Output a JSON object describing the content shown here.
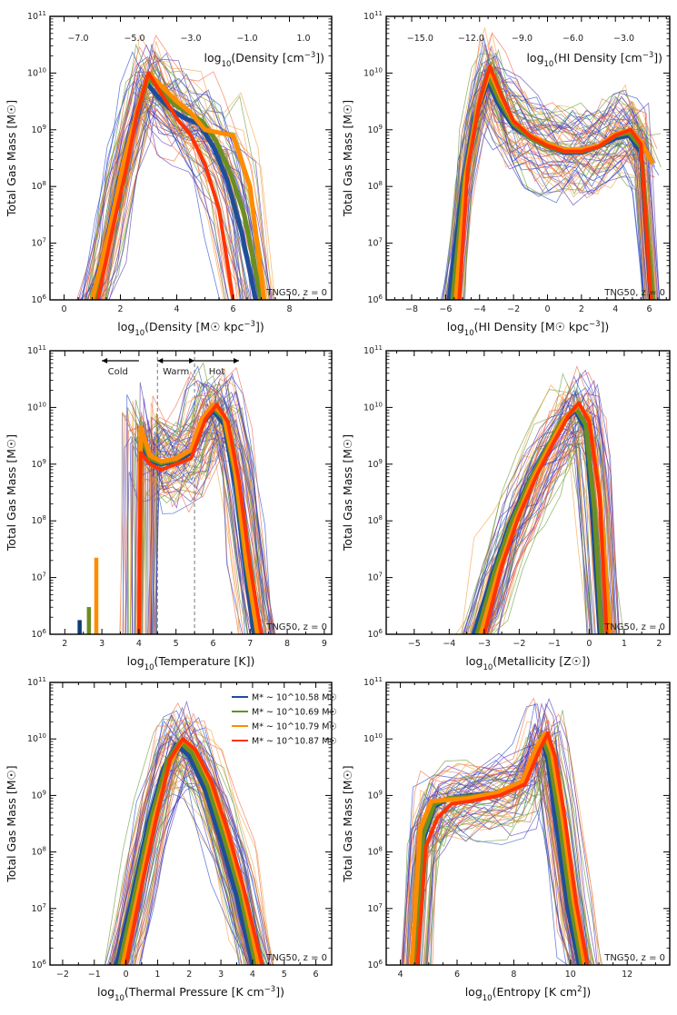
{
  "colors": {
    "g1": "#1f4e96",
    "g2": "#6b8e23",
    "g3": "#ff8c00",
    "g4": "#ff3300",
    "dark": "#0c3c78",
    "thin": [
      "#2b4fcf",
      "#6a9c3a",
      "#f4a340",
      "#ef6a4a",
      "#5a39b0"
    ]
  },
  "legend": [
    {
      "label": "M* ~ 10^10.58 M☉",
      "color": "#1f4e96"
    },
    {
      "label": "M* ~ 10^10.69 M☉",
      "color": "#6b8e23"
    },
    {
      "label": "M* ~ 10^10.79 M☉",
      "color": "#ff8c00"
    },
    {
      "label": "M* ~ 10^10.87 M☉",
      "color": "#ff3300"
    }
  ],
  "chart_data": [
    {
      "type": "line",
      "xlabel": "log10(Density [M☉ kpc^-3])",
      "ylabel": "Total Gas Mass [M☉]",
      "annotation": "TNG50, z = 0",
      "xlim": [
        -0.5,
        9.5
      ],
      "ylim": [
        6,
        11
      ],
      "yscale": "log",
      "xticks": [
        0,
        2,
        4,
        6,
        8
      ],
      "top_axis": {
        "label": "log10(Density [cm^-3])",
        "ticks": [
          -7.0,
          -5.0,
          -3.0,
          -1.0,
          1.0
        ],
        "labels": [
          "-7.0",
          "-5.0",
          "-3.0",
          "-1.0",
          "1.0"
        ],
        "offset": 7.5
      },
      "series": [
        {
          "x": [
            1.0,
            1.5,
            2.0,
            2.5,
            2.9,
            3.3,
            3.8,
            4.3,
            4.8,
            5.3,
            5.8,
            6.3,
            6.8
          ],
          "y": [
            6.0,
            7.0,
            8.2,
            9.2,
            9.85,
            9.6,
            9.35,
            9.2,
            9.1,
            8.7,
            8.1,
            7.2,
            6.0
          ]
        },
        {
          "x": [
            1.1,
            1.6,
            2.1,
            2.6,
            3.0,
            3.4,
            3.9,
            4.4,
            4.9,
            5.4,
            5.9,
            6.4,
            7.0
          ],
          "y": [
            6.0,
            7.1,
            8.3,
            9.3,
            9.92,
            9.7,
            9.45,
            9.3,
            9.15,
            8.8,
            8.25,
            7.5,
            6.0
          ]
        },
        {
          "x": [
            1.0,
            1.6,
            2.1,
            2.6,
            3.0,
            3.5,
            4.0,
            4.5,
            5.0,
            5.5,
            6.0,
            6.6,
            7.1
          ],
          "y": [
            6.0,
            7.2,
            8.4,
            9.35,
            10.0,
            9.75,
            9.5,
            9.3,
            9.0,
            8.95,
            8.9,
            8.0,
            6.0
          ]
        },
        {
          "x": [
            1.2,
            1.7,
            2.2,
            2.6,
            3.0,
            3.5,
            4.0,
            4.5,
            5.0,
            5.5,
            6.0
          ],
          "y": [
            6.0,
            7.2,
            8.3,
            9.3,
            10.0,
            9.6,
            9.2,
            8.9,
            8.4,
            7.6,
            6.0
          ]
        }
      ]
    },
    {
      "type": "line",
      "xlabel": "log10(HI Density [M☉ kpc^-3])",
      "ylabel": "Total Gas Mass [M☉]",
      "annotation": "TNG50, z = 0",
      "xlim": [
        -9.5,
        7.2
      ],
      "ylim": [
        6,
        11
      ],
      "yscale": "log",
      "xticks": [
        -8,
        -6,
        -4,
        -2,
        0,
        2,
        4,
        6
      ],
      "top_axis": {
        "label": "log10(HI Density [cm^-3])",
        "ticks": [
          -15.0,
          -12.0,
          -9.0,
          -6.0,
          -3.0
        ],
        "labels": [
          "-15.0",
          "-12.0",
          "-9.0",
          "-6.0",
          "-3.0"
        ],
        "offset": 7.5
      },
      "series": [
        {
          "x": [
            -5.8,
            -5.0,
            -4.3,
            -3.5,
            -2.8,
            -2.0,
            -1.0,
            0.0,
            1.0,
            2.0,
            3.0,
            4.0,
            4.8,
            5.5,
            6.1
          ],
          "y": [
            6.0,
            8.0,
            9.2,
            9.85,
            9.4,
            9.05,
            8.85,
            8.7,
            8.6,
            8.6,
            8.7,
            8.85,
            8.9,
            8.6,
            6.0
          ]
        },
        {
          "x": [
            -5.6,
            -4.9,
            -4.2,
            -3.5,
            -2.8,
            -2.0,
            -1.0,
            0.0,
            1.0,
            2.0,
            3.0,
            4.0,
            4.8,
            5.5,
            6.2
          ],
          "y": [
            6.0,
            8.1,
            9.3,
            9.95,
            9.5,
            9.1,
            8.85,
            8.7,
            8.62,
            8.62,
            8.7,
            8.9,
            8.95,
            8.7,
            6.0
          ]
        },
        {
          "x": [
            -5.4,
            -4.8,
            -4.1,
            -3.4,
            -2.7,
            -2.0,
            -1.0,
            0.0,
            1.0,
            2.0,
            3.0,
            4.0,
            4.9,
            5.5,
            6.2
          ],
          "y": [
            6.0,
            8.2,
            9.4,
            10.05,
            9.55,
            9.15,
            8.9,
            8.75,
            8.65,
            8.65,
            8.72,
            8.92,
            9.0,
            8.8,
            8.4
          ]
        },
        {
          "x": [
            -5.2,
            -4.7,
            -4.0,
            -3.4,
            -2.7,
            -2.0,
            -1.0,
            0.0,
            1.0,
            2.0,
            3.0,
            4.0,
            4.9,
            5.5,
            6.1
          ],
          "y": [
            6.0,
            8.3,
            9.5,
            10.12,
            9.6,
            9.15,
            8.88,
            8.72,
            8.62,
            8.62,
            8.7,
            8.9,
            9.0,
            8.75,
            6.0
          ]
        }
      ]
    },
    {
      "type": "line",
      "xlabel": "log10(Temperature [K])",
      "ylabel": "Total Gas Mass [M☉]",
      "annotation": "TNG50, z = 0",
      "xlim": [
        1.6,
        9.2
      ],
      "ylim": [
        6,
        11
      ],
      "yscale": "log",
      "xticks": [
        2,
        3,
        4,
        5,
        6,
        7,
        8,
        9
      ],
      "vlines": [
        4.5,
        5.5
      ],
      "phases": [
        {
          "label": "Cold",
          "from": 4.0,
          "to": 3.0
        },
        {
          "label": "Warm",
          "from": 4.5,
          "to": 5.5
        },
        {
          "label": "Hot",
          "from": 5.5,
          "to": 6.7
        }
      ],
      "spikes": [
        {
          "x": 2.4,
          "y": 6.25
        },
        {
          "x": 2.65,
          "y": 6.48
        },
        {
          "x": 2.85,
          "y": 7.35
        }
      ],
      "series": [
        {
          "x": [
            4.0,
            4.05,
            4.3,
            4.6,
            5.0,
            5.4,
            5.7,
            6.0,
            6.3,
            6.6,
            6.9,
            7.1
          ],
          "y": [
            6.0,
            9.4,
            9.05,
            9.0,
            9.05,
            9.2,
            9.7,
            9.95,
            9.7,
            8.6,
            7.0,
            6.0
          ]
        },
        {
          "x": [
            4.0,
            4.05,
            4.3,
            4.6,
            5.0,
            5.4,
            5.7,
            6.0,
            6.3,
            6.6,
            6.9,
            7.2
          ],
          "y": [
            6.0,
            9.5,
            9.1,
            9.02,
            9.08,
            9.25,
            9.75,
            10.0,
            9.8,
            8.8,
            7.2,
            6.0
          ]
        },
        {
          "x": [
            4.0,
            4.05,
            4.3,
            4.6,
            5.0,
            5.4,
            5.7,
            6.0,
            6.3,
            6.6,
            6.9,
            7.2
          ],
          "y": [
            6.0,
            9.65,
            9.15,
            9.05,
            9.1,
            9.25,
            9.8,
            10.05,
            9.85,
            8.9,
            7.3,
            6.0
          ]
        },
        {
          "x": [
            4.0,
            4.05,
            4.3,
            4.6,
            5.0,
            5.4,
            5.8,
            6.1,
            6.4,
            6.7,
            7.0,
            7.3
          ],
          "y": [
            6.0,
            9.2,
            9.0,
            8.9,
            9.0,
            9.1,
            9.8,
            10.05,
            9.75,
            8.7,
            7.2,
            6.0
          ]
        }
      ]
    },
    {
      "type": "line",
      "xlabel": "log10(Metallicity [Z☉])",
      "ylabel": "Total Gas Mass [M☉]",
      "annotation": "TNG50, z = 0",
      "xlim": [
        -5.8,
        2.3
      ],
      "ylim": [
        6,
        11
      ],
      "yscale": "log",
      "xticks": [
        -5,
        -4,
        -3,
        -2,
        -1,
        0,
        1,
        2
      ],
      "series": [
        {
          "x": [
            -3.3,
            -2.8,
            -2.3,
            -1.8,
            -1.3,
            -0.8,
            -0.4,
            -0.1,
            0.1,
            0.3
          ],
          "y": [
            6.0,
            7.0,
            7.9,
            8.6,
            9.2,
            9.7,
            9.95,
            9.6,
            8.0,
            6.0
          ]
        },
        {
          "x": [
            -3.2,
            -2.7,
            -2.2,
            -1.7,
            -1.2,
            -0.8,
            -0.4,
            -0.1,
            0.15,
            0.35
          ],
          "y": [
            6.0,
            7.1,
            8.0,
            8.7,
            9.3,
            9.75,
            10.0,
            9.7,
            8.2,
            6.0
          ]
        },
        {
          "x": [
            -3.1,
            -2.6,
            -2.1,
            -1.6,
            -1.1,
            -0.7,
            -0.3,
            0.0,
            0.3,
            0.6
          ],
          "y": [
            6.0,
            7.1,
            8.0,
            8.75,
            9.35,
            9.8,
            10.05,
            9.8,
            8.5,
            6.0
          ]
        },
        {
          "x": [
            -3.0,
            -2.5,
            -2.0,
            -1.5,
            -1.0,
            -0.6,
            -0.3,
            0.0,
            0.3,
            0.5
          ],
          "y": [
            6.0,
            7.2,
            8.1,
            8.8,
            9.4,
            9.85,
            10.08,
            9.75,
            8.4,
            6.0
          ]
        }
      ]
    },
    {
      "type": "line",
      "xlabel": "log10(Thermal Pressure [K cm^-3])",
      "ylabel": "Total Gas Mass [M☉]",
      "annotation": "TNG50, z = 0",
      "xlim": [
        -2.4,
        6.5
      ],
      "ylim": [
        6,
        11
      ],
      "yscale": "log",
      "xticks": [
        -2,
        -1,
        0,
        1,
        2,
        3,
        4,
        5,
        6
      ],
      "series": [
        {
          "x": [
            -0.3,
            0.2,
            0.7,
            1.2,
            1.6,
            2.0,
            2.5,
            3.0,
            3.5,
            4.0
          ],
          "y": [
            6.0,
            7.2,
            8.5,
            9.5,
            9.9,
            9.7,
            9.1,
            8.2,
            7.2,
            6.0
          ]
        },
        {
          "x": [
            -0.2,
            0.3,
            0.8,
            1.3,
            1.7,
            2.1,
            2.6,
            3.1,
            3.6,
            4.1
          ],
          "y": [
            6.0,
            7.3,
            8.6,
            9.6,
            9.95,
            9.75,
            9.15,
            8.25,
            7.3,
            6.0
          ]
        },
        {
          "x": [
            -0.1,
            0.4,
            0.9,
            1.4,
            1.8,
            2.2,
            2.7,
            3.2,
            3.7,
            4.2
          ],
          "y": [
            6.0,
            7.3,
            8.6,
            9.6,
            10.0,
            9.8,
            9.2,
            8.3,
            7.3,
            6.0
          ]
        },
        {
          "x": [
            0.0,
            0.5,
            1.0,
            1.4,
            1.8,
            2.2,
            2.7,
            3.2,
            3.7,
            4.3
          ],
          "y": [
            6.0,
            7.4,
            8.7,
            9.65,
            10.0,
            9.8,
            9.25,
            8.4,
            7.4,
            6.0
          ]
        }
      ]
    },
    {
      "type": "line",
      "xlabel": "log10(Entropy [K cm^2])",
      "ylabel": "Total Gas Mass [M☉]",
      "annotation": "TNG50, z = 0",
      "xlim": [
        3.5,
        13.5
      ],
      "ylim": [
        6,
        11
      ],
      "yscale": "log",
      "xticks": [
        4,
        6,
        8,
        10,
        12
      ],
      "series": [
        {
          "x": [
            4.6,
            4.8,
            5.2,
            5.7,
            6.5,
            7.5,
            8.3,
            8.8,
            9.0,
            9.2,
            9.5,
            9.9,
            10.3
          ],
          "y": [
            6.0,
            8.2,
            8.8,
            8.95,
            9.0,
            9.05,
            9.2,
            9.7,
            10.0,
            9.6,
            8.5,
            7.0,
            6.0
          ]
        },
        {
          "x": [
            4.5,
            4.8,
            5.2,
            5.7,
            6.5,
            7.5,
            8.3,
            8.8,
            9.0,
            9.25,
            9.6,
            10.0,
            10.4
          ],
          "y": [
            6.0,
            8.3,
            8.85,
            8.95,
            8.98,
            9.05,
            9.2,
            9.8,
            10.05,
            9.7,
            8.6,
            7.1,
            6.0
          ]
        },
        {
          "x": [
            4.4,
            4.7,
            5.1,
            5.6,
            6.4,
            7.4,
            8.3,
            8.8,
            9.1,
            9.35,
            9.7,
            10.1,
            10.5
          ],
          "y": [
            6.0,
            8.4,
            8.9,
            8.92,
            8.95,
            9.05,
            9.25,
            9.85,
            10.1,
            9.75,
            8.7,
            7.2,
            6.0
          ]
        },
        {
          "x": [
            4.6,
            4.9,
            5.3,
            5.8,
            6.5,
            7.5,
            8.4,
            8.9,
            9.2,
            9.45,
            9.8,
            10.2,
            10.6
          ],
          "y": [
            6.0,
            8.1,
            8.6,
            8.85,
            8.9,
            9.0,
            9.2,
            9.8,
            10.1,
            9.7,
            8.6,
            7.1,
            6.0
          ]
        }
      ]
    }
  ]
}
